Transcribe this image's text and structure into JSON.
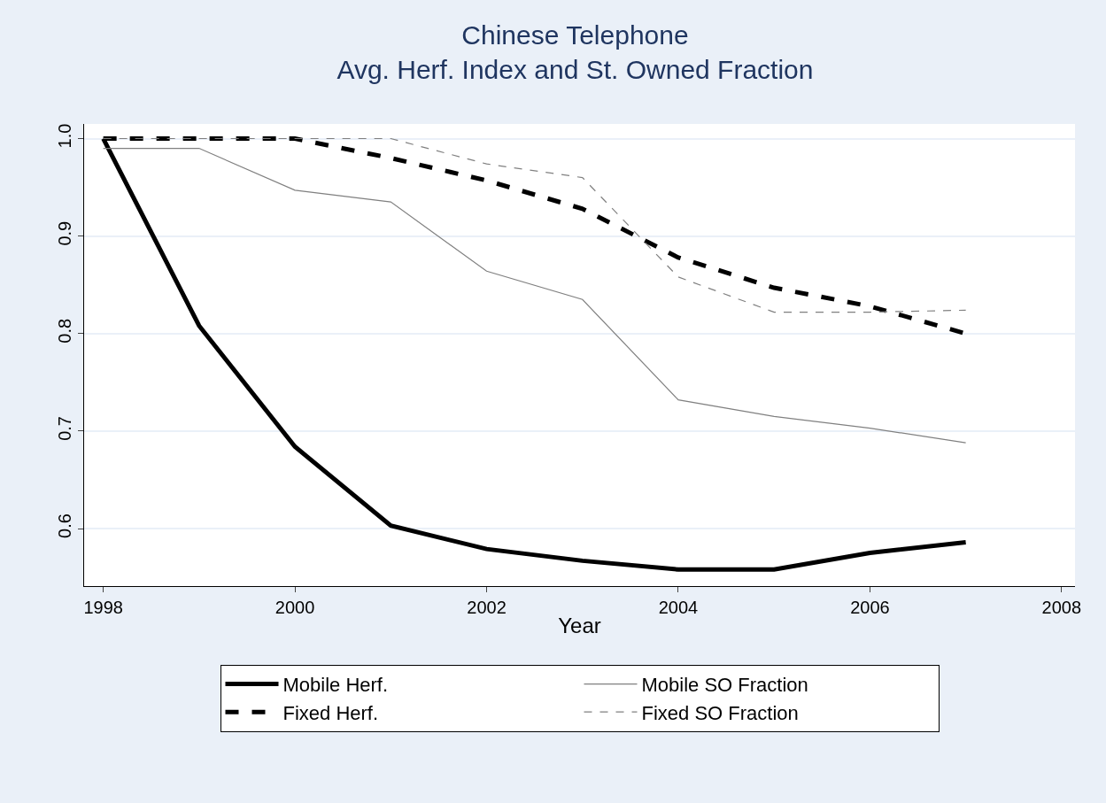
{
  "chart_data": {
    "type": "line",
    "title": "Chinese Telephone\nAvg. Herf. Index and St. Owned Fraction",
    "xlabel": "Year",
    "x": [
      1998,
      1999,
      2000,
      2001,
      2002,
      2003,
      2004,
      2005,
      2006,
      2007
    ],
    "series": [
      {
        "name": "Mobile Herf.",
        "color": "#000000",
        "line_style": "solid",
        "values": [
          1.0,
          0.808,
          0.684,
          0.603,
          0.579,
          0.567,
          0.558,
          0.558,
          0.575,
          0.586
        ]
      },
      {
        "name": "Mobile SO Fraction",
        "color": "#808080",
        "line_style": "solid",
        "values": [
          0.99,
          0.99,
          0.947,
          0.935,
          0.864,
          0.835,
          0.732,
          0.715,
          0.703,
          0.688
        ]
      },
      {
        "name": "Fixed Herf.",
        "color": "#000000",
        "line_style": "dashed",
        "values": [
          1.0,
          1.0,
          1.0,
          0.98,
          0.957,
          0.928,
          0.878,
          0.847,
          0.828,
          0.8
        ]
      },
      {
        "name": "Fixed SO Fraction",
        "color": "#808080",
        "line_style": "dashed",
        "values": [
          1.0,
          1.0,
          1.0,
          1.0,
          0.974,
          0.96,
          0.858,
          0.822,
          0.822,
          0.824
        ]
      }
    ],
    "xlim": [
      1997.8,
      2008.14
    ],
    "xticks": [
      1998,
      2000,
      2002,
      2004,
      2006,
      2008
    ],
    "ylim": [
      0.541,
      1.015
    ],
    "yticks": [
      {
        "value": 0.6,
        "label": "0.6"
      },
      {
        "value": 0.7,
        "label": "0.7"
      },
      {
        "value": 0.8,
        "label": "0.8"
      },
      {
        "value": 0.9,
        "label": "0.9"
      },
      {
        "value": 1.0,
        "label": "1.0"
      }
    ],
    "grid": "y",
    "legend": "bottom",
    "marker": "none"
  }
}
